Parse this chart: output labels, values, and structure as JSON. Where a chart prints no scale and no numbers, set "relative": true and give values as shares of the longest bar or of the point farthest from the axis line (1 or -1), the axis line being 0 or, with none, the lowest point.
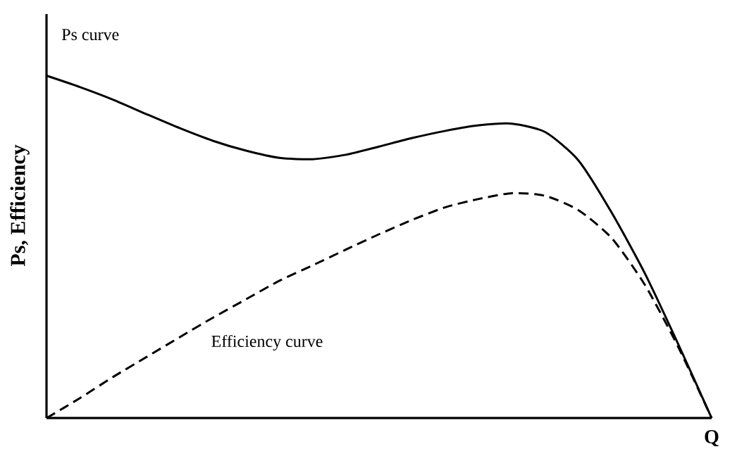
{
  "chart_data": {
    "type": "line",
    "relative": true,
    "xlabel": "Q",
    "ylabel": "Ps, Efficiency",
    "categories": [
      null,
      null,
      null,
      null,
      null,
      null,
      null,
      null,
      null,
      null,
      null,
      null,
      null,
      null,
      null,
      null,
      null,
      null,
      null,
      null,
      null
    ],
    "series": [
      {
        "name": "Ps curve",
        "color": "#000000",
        "line_style": "solid",
        "values": [
          1,
          0.967,
          0.93,
          0.888,
          0.847,
          0.81,
          0.781,
          0.76,
          0.756,
          0.769,
          0.793,
          0.818,
          0.839,
          0.855,
          0.86,
          0.835,
          0.752,
          0.599,
          0.421,
          0.215,
          0
        ]
      },
      {
        "name": "Efficiency curve",
        "color": "#000000",
        "line_style": "dashed",
        "values": [
          0,
          0.058,
          0.12,
          0.178,
          0.236,
          0.293,
          0.347,
          0.401,
          0.446,
          0.492,
          0.537,
          0.579,
          0.616,
          0.64,
          0.657,
          0.649,
          0.607,
          0.525,
          0.388,
          0.207,
          0
        ]
      }
    ]
  }
}
